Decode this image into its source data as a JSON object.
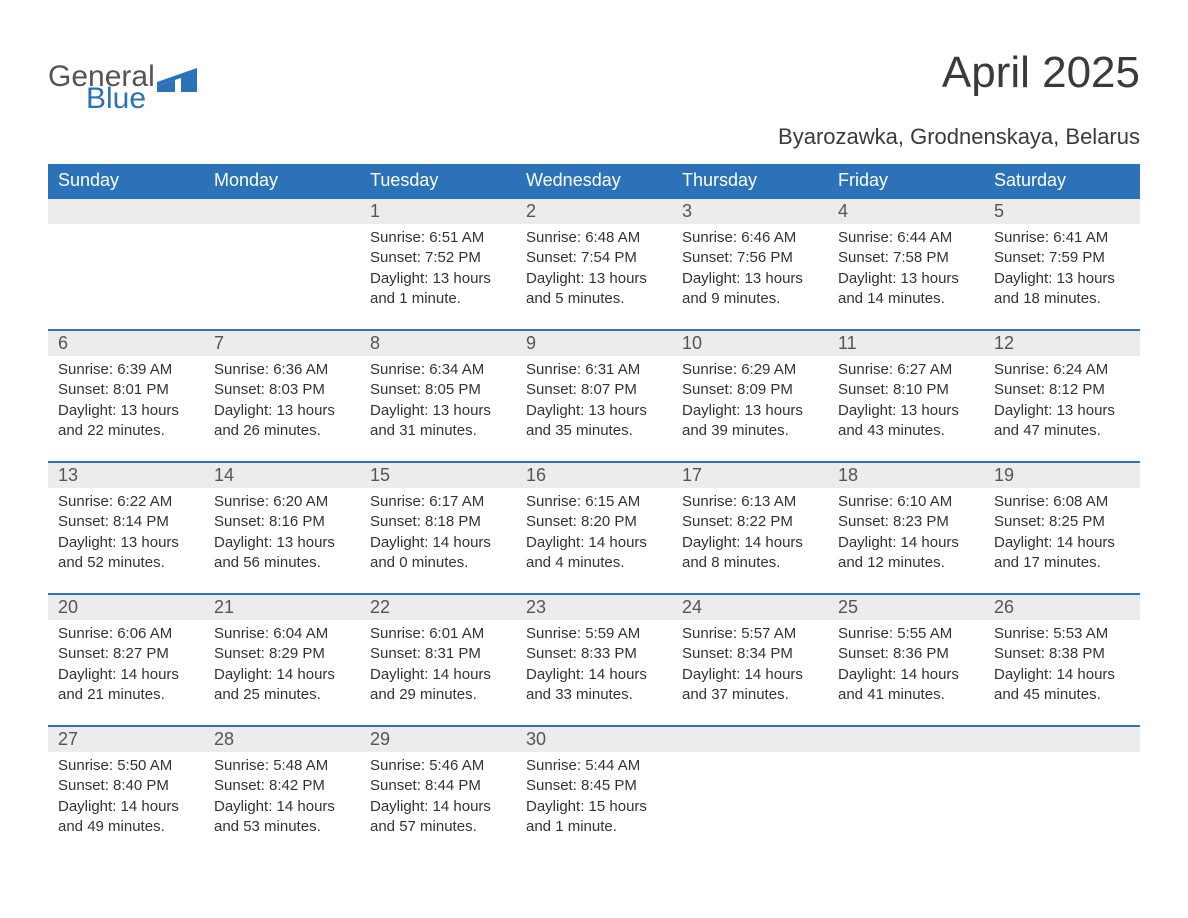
{
  "logo": {
    "word1": "General",
    "word2": "Blue",
    "icon_color": "#2b72b9"
  },
  "title": "April 2025",
  "subtitle": "Byarozawka, Grodnenskaya, Belarus",
  "colors": {
    "header_bg": "#2b72b9",
    "header_text": "#ffffff",
    "daynum_bg": "#ececec",
    "daynum_text": "#555555",
    "body_text": "#333333",
    "page_bg": "#ffffff",
    "row_separator": "#2b72b9"
  },
  "typography": {
    "title_fontsize": 44,
    "subtitle_fontsize": 22,
    "weekday_fontsize": 18,
    "daynum_fontsize": 18,
    "cell_fontsize": 15,
    "font_family": "Segoe UI"
  },
  "weekdays": [
    "Sunday",
    "Monday",
    "Tuesday",
    "Wednesday",
    "Thursday",
    "Friday",
    "Saturday"
  ],
  "weeks": [
    [
      {
        "day": "",
        "sunrise": "",
        "sunset": "",
        "daylight": ""
      },
      {
        "day": "",
        "sunrise": "",
        "sunset": "",
        "daylight": ""
      },
      {
        "day": "1",
        "sunrise": "Sunrise: 6:51 AM",
        "sunset": "Sunset: 7:52 PM",
        "daylight": "Daylight: 13 hours and 1 minute."
      },
      {
        "day": "2",
        "sunrise": "Sunrise: 6:48 AM",
        "sunset": "Sunset: 7:54 PM",
        "daylight": "Daylight: 13 hours and 5 minutes."
      },
      {
        "day": "3",
        "sunrise": "Sunrise: 6:46 AM",
        "sunset": "Sunset: 7:56 PM",
        "daylight": "Daylight: 13 hours and 9 minutes."
      },
      {
        "day": "4",
        "sunrise": "Sunrise: 6:44 AM",
        "sunset": "Sunset: 7:58 PM",
        "daylight": "Daylight: 13 hours and 14 minutes."
      },
      {
        "day": "5",
        "sunrise": "Sunrise: 6:41 AM",
        "sunset": "Sunset: 7:59 PM",
        "daylight": "Daylight: 13 hours and 18 minutes."
      }
    ],
    [
      {
        "day": "6",
        "sunrise": "Sunrise: 6:39 AM",
        "sunset": "Sunset: 8:01 PM",
        "daylight": "Daylight: 13 hours and 22 minutes."
      },
      {
        "day": "7",
        "sunrise": "Sunrise: 6:36 AM",
        "sunset": "Sunset: 8:03 PM",
        "daylight": "Daylight: 13 hours and 26 minutes."
      },
      {
        "day": "8",
        "sunrise": "Sunrise: 6:34 AM",
        "sunset": "Sunset: 8:05 PM",
        "daylight": "Daylight: 13 hours and 31 minutes."
      },
      {
        "day": "9",
        "sunrise": "Sunrise: 6:31 AM",
        "sunset": "Sunset: 8:07 PM",
        "daylight": "Daylight: 13 hours and 35 minutes."
      },
      {
        "day": "10",
        "sunrise": "Sunrise: 6:29 AM",
        "sunset": "Sunset: 8:09 PM",
        "daylight": "Daylight: 13 hours and 39 minutes."
      },
      {
        "day": "11",
        "sunrise": "Sunrise: 6:27 AM",
        "sunset": "Sunset: 8:10 PM",
        "daylight": "Daylight: 13 hours and 43 minutes."
      },
      {
        "day": "12",
        "sunrise": "Sunrise: 6:24 AM",
        "sunset": "Sunset: 8:12 PM",
        "daylight": "Daylight: 13 hours and 47 minutes."
      }
    ],
    [
      {
        "day": "13",
        "sunrise": "Sunrise: 6:22 AM",
        "sunset": "Sunset: 8:14 PM",
        "daylight": "Daylight: 13 hours and 52 minutes."
      },
      {
        "day": "14",
        "sunrise": "Sunrise: 6:20 AM",
        "sunset": "Sunset: 8:16 PM",
        "daylight": "Daylight: 13 hours and 56 minutes."
      },
      {
        "day": "15",
        "sunrise": "Sunrise: 6:17 AM",
        "sunset": "Sunset: 8:18 PM",
        "daylight": "Daylight: 14 hours and 0 minutes."
      },
      {
        "day": "16",
        "sunrise": "Sunrise: 6:15 AM",
        "sunset": "Sunset: 8:20 PM",
        "daylight": "Daylight: 14 hours and 4 minutes."
      },
      {
        "day": "17",
        "sunrise": "Sunrise: 6:13 AM",
        "sunset": "Sunset: 8:22 PM",
        "daylight": "Daylight: 14 hours and 8 minutes."
      },
      {
        "day": "18",
        "sunrise": "Sunrise: 6:10 AM",
        "sunset": "Sunset: 8:23 PM",
        "daylight": "Daylight: 14 hours and 12 minutes."
      },
      {
        "day": "19",
        "sunrise": "Sunrise: 6:08 AM",
        "sunset": "Sunset: 8:25 PM",
        "daylight": "Daylight: 14 hours and 17 minutes."
      }
    ],
    [
      {
        "day": "20",
        "sunrise": "Sunrise: 6:06 AM",
        "sunset": "Sunset: 8:27 PM",
        "daylight": "Daylight: 14 hours and 21 minutes."
      },
      {
        "day": "21",
        "sunrise": "Sunrise: 6:04 AM",
        "sunset": "Sunset: 8:29 PM",
        "daylight": "Daylight: 14 hours and 25 minutes."
      },
      {
        "day": "22",
        "sunrise": "Sunrise: 6:01 AM",
        "sunset": "Sunset: 8:31 PM",
        "daylight": "Daylight: 14 hours and 29 minutes."
      },
      {
        "day": "23",
        "sunrise": "Sunrise: 5:59 AM",
        "sunset": "Sunset: 8:33 PM",
        "daylight": "Daylight: 14 hours and 33 minutes."
      },
      {
        "day": "24",
        "sunrise": "Sunrise: 5:57 AM",
        "sunset": "Sunset: 8:34 PM",
        "daylight": "Daylight: 14 hours and 37 minutes."
      },
      {
        "day": "25",
        "sunrise": "Sunrise: 5:55 AM",
        "sunset": "Sunset: 8:36 PM",
        "daylight": "Daylight: 14 hours and 41 minutes."
      },
      {
        "day": "26",
        "sunrise": "Sunrise: 5:53 AM",
        "sunset": "Sunset: 8:38 PM",
        "daylight": "Daylight: 14 hours and 45 minutes."
      }
    ],
    [
      {
        "day": "27",
        "sunrise": "Sunrise: 5:50 AM",
        "sunset": "Sunset: 8:40 PM",
        "daylight": "Daylight: 14 hours and 49 minutes."
      },
      {
        "day": "28",
        "sunrise": "Sunrise: 5:48 AM",
        "sunset": "Sunset: 8:42 PM",
        "daylight": "Daylight: 14 hours and 53 minutes."
      },
      {
        "day": "29",
        "sunrise": "Sunrise: 5:46 AM",
        "sunset": "Sunset: 8:44 PM",
        "daylight": "Daylight: 14 hours and 57 minutes."
      },
      {
        "day": "30",
        "sunrise": "Sunrise: 5:44 AM",
        "sunset": "Sunset: 8:45 PM",
        "daylight": "Daylight: 15 hours and 1 minute."
      },
      {
        "day": "",
        "sunrise": "",
        "sunset": "",
        "daylight": ""
      },
      {
        "day": "",
        "sunrise": "",
        "sunset": "",
        "daylight": ""
      },
      {
        "day": "",
        "sunrise": "",
        "sunset": "",
        "daylight": ""
      }
    ]
  ]
}
